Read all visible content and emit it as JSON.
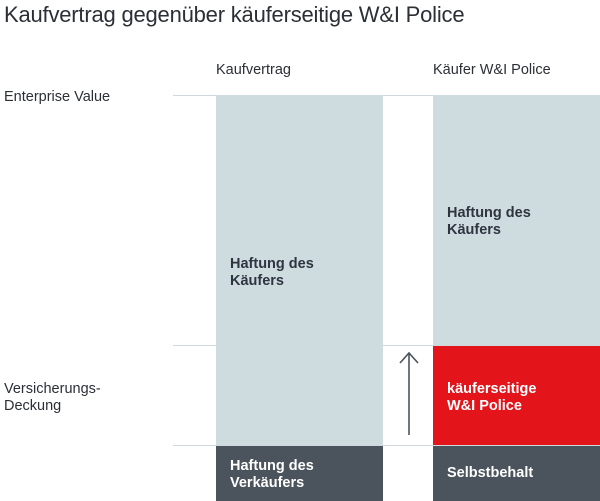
{
  "title": "Kaufvertrag gegenüber käuferseitige W&I Police",
  "columns": {
    "left": "Kaufvertrag",
    "right": "Käufer W&I Police"
  },
  "rows": {
    "enterprise_value": "Enterprise Value",
    "coverage_line1": "Versicherungs-",
    "coverage_line2": "Deckung"
  },
  "left_column": {
    "buyer_line1": "Haftung des",
    "buyer_line2": "Käufers",
    "seller_line1": "Haftung des",
    "seller_line2": "Verkäufers"
  },
  "right_column": {
    "buyer_line1": "Haftung des",
    "buyer_line2": "Käufers",
    "policy_line1": "käuferseitige",
    "policy_line2": "W&I Police",
    "retention": "Selbstbehalt"
  },
  "colors": {
    "light_block": "#cfdcdf",
    "dark_block": "#4b545c",
    "policy_red": "#e4141b"
  },
  "icons": {
    "arrow": "up-arrow-icon"
  }
}
